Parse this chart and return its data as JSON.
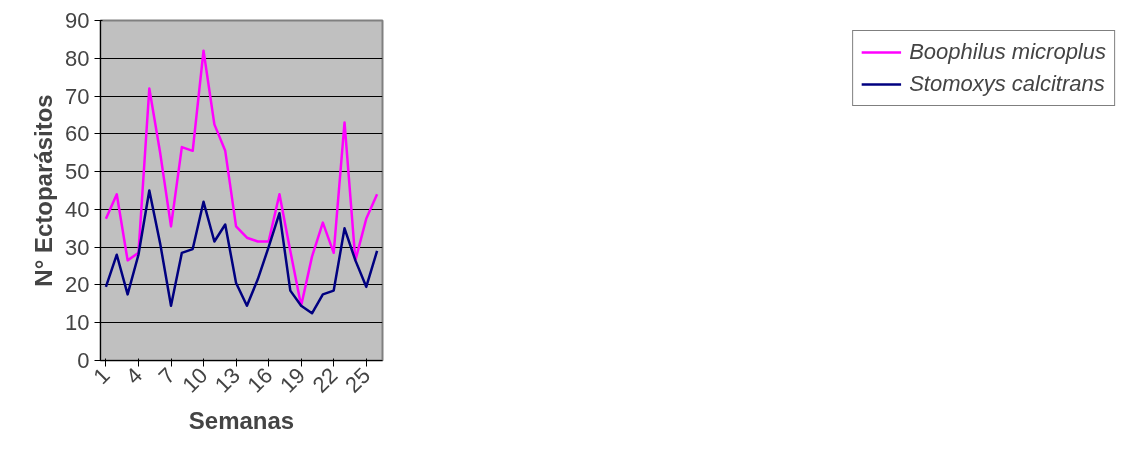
{
  "chart_data": {
    "type": "line",
    "xlabel": "Semanas",
    "ylabel": "N° Ectoparásitos",
    "categories": [
      "1",
      null,
      null,
      "4",
      null,
      null,
      "7",
      null,
      null,
      "10",
      null,
      null,
      "13",
      null,
      null,
      "16",
      null,
      null,
      "19",
      null,
      null,
      "22",
      null,
      null,
      "25",
      null
    ],
    "series": [
      {
        "name": "Boophilus microplus",
        "color": "#ff00ff",
        "values": [
          37.5,
          44,
          26.5,
          28.5,
          72,
          55,
          35.5,
          56.5,
          55.5,
          82,
          62.5,
          55.5,
          35.5,
          32.5,
          31.5,
          31.5,
          44,
          29,
          14.5,
          27.5,
          36.5,
          28.5,
          63,
          26.5,
          37.5,
          44
        ]
      },
      {
        "name": "Stomoxys calcitrans",
        "color": "#000080",
        "values": [
          19.5,
          28,
          17.5,
          28,
          45,
          31,
          14.5,
          28.5,
          29.5,
          42,
          31.5,
          36,
          20.5,
          14.5,
          21.5,
          30,
          39,
          18.5,
          14.5,
          12.5,
          17.5,
          18.5,
          35,
          26.5,
          19.5,
          29
        ]
      }
    ],
    "ylim": [
      0,
      90
    ],
    "yticks": [
      0,
      10,
      20,
      30,
      40,
      50,
      60,
      70,
      80,
      90
    ],
    "grid": "y",
    "legend": "right",
    "marker": "none",
    "line_style": "solid"
  }
}
